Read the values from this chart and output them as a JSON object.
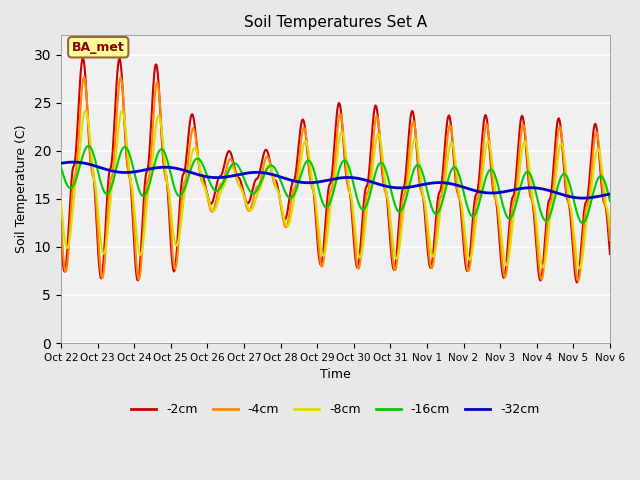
{
  "title": "Soil Temperatures Set A",
  "xlabel": "Time",
  "ylabel": "Soil Temperature (C)",
  "ylim": [
    0,
    32
  ],
  "yticks": [
    0,
    5,
    10,
    15,
    20,
    25,
    30
  ],
  "annotation": "BA_met",
  "bg_color": "#e8e8e8",
  "plot_bg_color": "#f0f0f0",
  "colors": {
    "-2cm": "#cc0000",
    "-4cm": "#ff8800",
    "-8cm": "#dddd00",
    "-16cm": "#00cc00",
    "-32cm": "#0000cc"
  },
  "line_width": 1.5,
  "tick_labels": [
    "Oct 22",
    "Oct 23",
    "Oct 24",
    "Oct 25",
    "Oct 26",
    "Oct 27",
    "Oct 28",
    "Oct 29",
    "Oct 30",
    "Oct 31",
    "Nov 1",
    "Nov 2",
    "Nov 3",
    "Nov 4",
    "Nov 5",
    "Nov 6"
  ],
  "tick_positions": [
    0,
    1,
    2,
    3,
    4,
    5,
    6,
    7,
    8,
    9,
    10,
    11,
    12,
    13,
    14,
    15
  ]
}
